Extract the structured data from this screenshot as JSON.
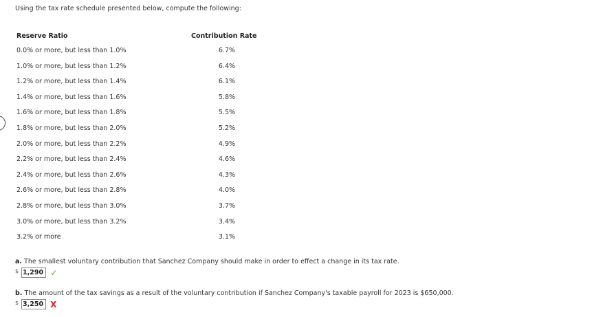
{
  "instruction": "Using the tax rate schedule presented below, compute the following:",
  "table": {
    "header_ratio": "Reserve Ratio",
    "header_rate": "Contribution Rate",
    "rows": [
      {
        "ratio": "0.0% or more, but less than 1.0%",
        "rate": "6.7%"
      },
      {
        "ratio": "1.0% or more, but less than 1.2%",
        "rate": "6.4%"
      },
      {
        "ratio": "1.2% or more, but less than 1.4%",
        "rate": "6.1%"
      },
      {
        "ratio": "1.4% or more, but less than 1.6%",
        "rate": "5.8%"
      },
      {
        "ratio": "1.6% or more, but less than 1.8%",
        "rate": "5.5%"
      },
      {
        "ratio": "1.8% or more, but less than 2.0%",
        "rate": "5.2%"
      },
      {
        "ratio": "2.0% or more, but less than 2.2%",
        "rate": "4.9%"
      },
      {
        "ratio": "2.2% or more, but less than 2.4%",
        "rate": "4.6%"
      },
      {
        "ratio": "2.4% or more, but less than 2.6%",
        "rate": "4.3%"
      },
      {
        "ratio": "2.6% or more, but less than 2.8%",
        "rate": "4.0%"
      },
      {
        "ratio": "2.8% or more, but less than 3.0%",
        "rate": "3.7%"
      },
      {
        "ratio": "3.0% or more, but less than 3.2%",
        "rate": "3.4%"
      },
      {
        "ratio": "3.2% or more",
        "rate": "3.1%"
      }
    ]
  },
  "question_a": {
    "label": "a.",
    "text": " The smallest voluntary contribution that Sanchez Company should make in order to effect a change in its tax rate.",
    "currency": "$",
    "value": "1,290",
    "result": "✓",
    "result_color": "#55a630"
  },
  "question_b": {
    "label": "b.",
    "text": " The amount of the tax savings as a result of the voluntary contribution if Sanchez Company's taxable payroll for 2023 is $650,000.",
    "currency": "$",
    "value": "3,250",
    "result": "X",
    "result_color": "#d62222"
  }
}
